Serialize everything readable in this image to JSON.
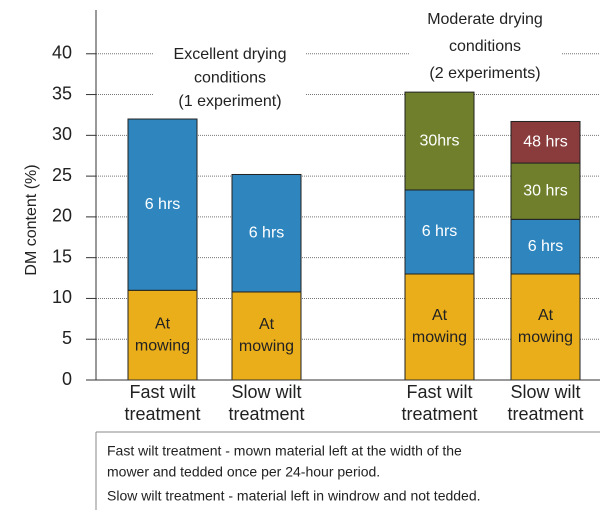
{
  "chart_data": {
    "type": "stacked_bar",
    "y_label": "DM content (%)",
    "categories": [
      [
        "Fast wilt",
        "treatment"
      ],
      [
        "Slow wilt",
        "treatment"
      ],
      [
        "Fast wilt",
        "treatment"
      ],
      [
        "Slow wilt",
        "treatment"
      ]
    ],
    "ylim": [
      0,
      45
    ],
    "yticks": [
      0,
      5,
      10,
      15,
      20,
      25,
      30,
      35,
      40
    ],
    "grid": true,
    "series": [
      {
        "name": "At mowing",
        "color": "#ebae1b",
        "text_color": "#222222",
        "values": [
          11,
          10.8,
          13,
          13
        ],
        "labels": [
          [
            "At",
            "mowing"
          ],
          [
            "At",
            "mowing"
          ],
          [
            "At",
            "mowing"
          ],
          [
            "At",
            "mowing"
          ]
        ]
      },
      {
        "name": "6 hrs",
        "color": "#2f86bf",
        "text_color": "#ffffff",
        "values": [
          21,
          14.4,
          10.3,
          6.7
        ],
        "labels": [
          [
            "6 hrs"
          ],
          [
            "6 hrs"
          ],
          [
            "6 hrs"
          ],
          [
            "6 hrs"
          ]
        ]
      },
      {
        "name": "30 hrs",
        "color": "#6f7f2b",
        "text_color": "#ffffff",
        "values": [
          null,
          null,
          12,
          6.9
        ],
        "labels": [
          null,
          null,
          [
            "30hrs"
          ],
          [
            "30 hrs"
          ]
        ]
      },
      {
        "name": "48 hrs",
        "color": "#8a3b3b",
        "text_color": "#ffffff",
        "values": [
          null,
          null,
          null,
          5.1
        ],
        "labels": [
          null,
          null,
          null,
          [
            "48 hrs"
          ]
        ]
      }
    ],
    "annotations": [
      {
        "lines": [
          "Excellent drying",
          "conditions",
          "(1 experiment)"
        ]
      },
      {
        "lines": [
          "Moderate drying",
          "conditions",
          "(2 experiments)"
        ]
      }
    ],
    "notes": [
      "Fast wilt treatment - mown material left at the width of the",
      "mower and tedded once per 24-hour period.",
      "Slow wilt treatment - material left in windrow and not tedded."
    ]
  }
}
